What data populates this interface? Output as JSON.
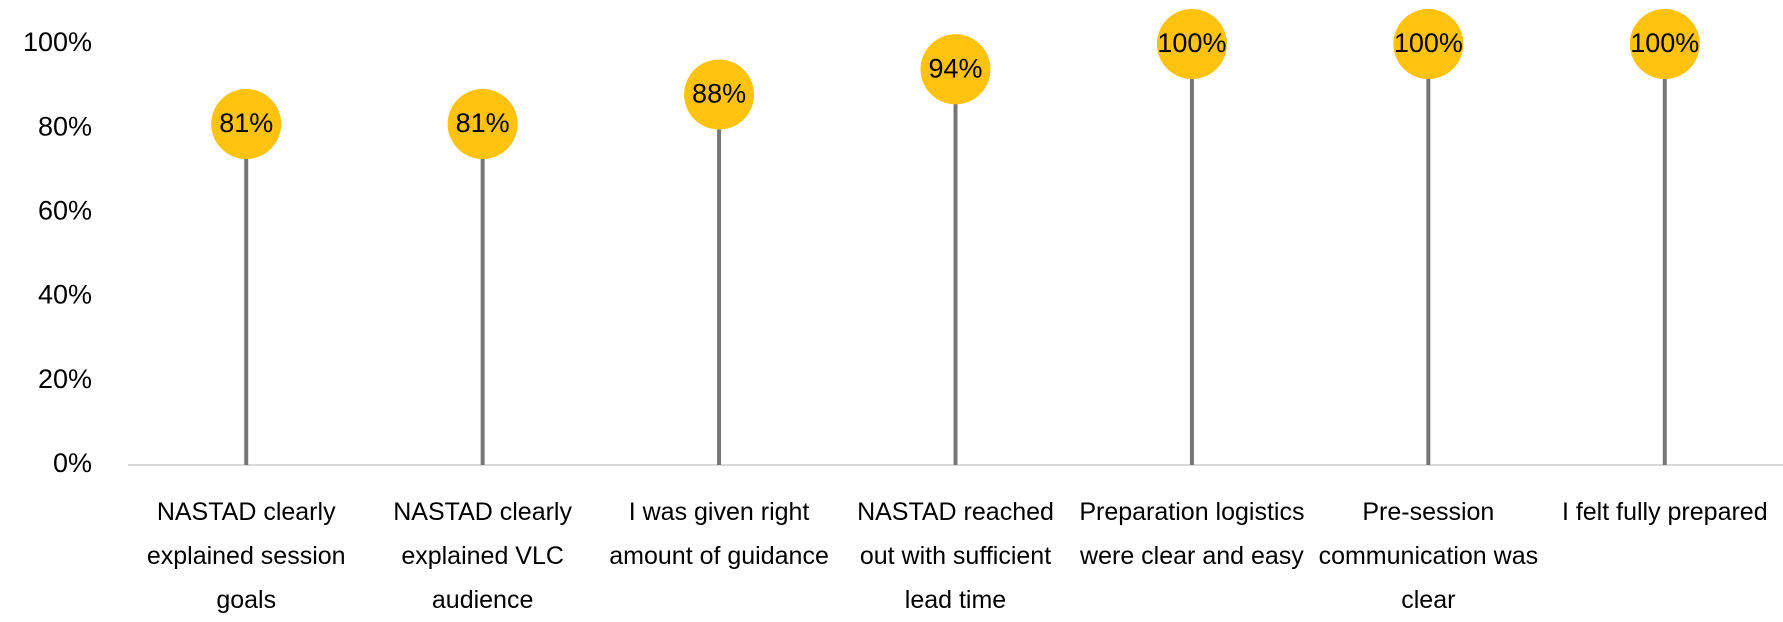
{
  "chart_data": {
    "type": "lollipop",
    "categories": [
      "NASTAD clearly explained session goals",
      "NASTAD clearly explained VLC audience",
      "I was given right amount of guidance",
      "NASTAD reached out with sufficient lead time",
      "Preparation logistics were clear and easy",
      "Pre-session communication was clear",
      "I felt fully prepared"
    ],
    "values": [
      81,
      81,
      88,
      94,
      100,
      100,
      100
    ],
    "value_labels": [
      "81%",
      "81%",
      "88%",
      "94%",
      "100%",
      "100%",
      "100%"
    ],
    "color": "#FFC20E",
    "stem_color": "#767676",
    "ylim": [
      0,
      100
    ],
    "yticks": [
      {
        "value": 0,
        "label": "0%"
      },
      {
        "value": 20,
        "label": "20%"
      },
      {
        "value": 40,
        "label": "40%"
      },
      {
        "value": 60,
        "label": "60%"
      },
      {
        "value": 80,
        "label": "80%"
      },
      {
        "value": 100,
        "label": "100%"
      }
    ],
    "grid": false
  }
}
